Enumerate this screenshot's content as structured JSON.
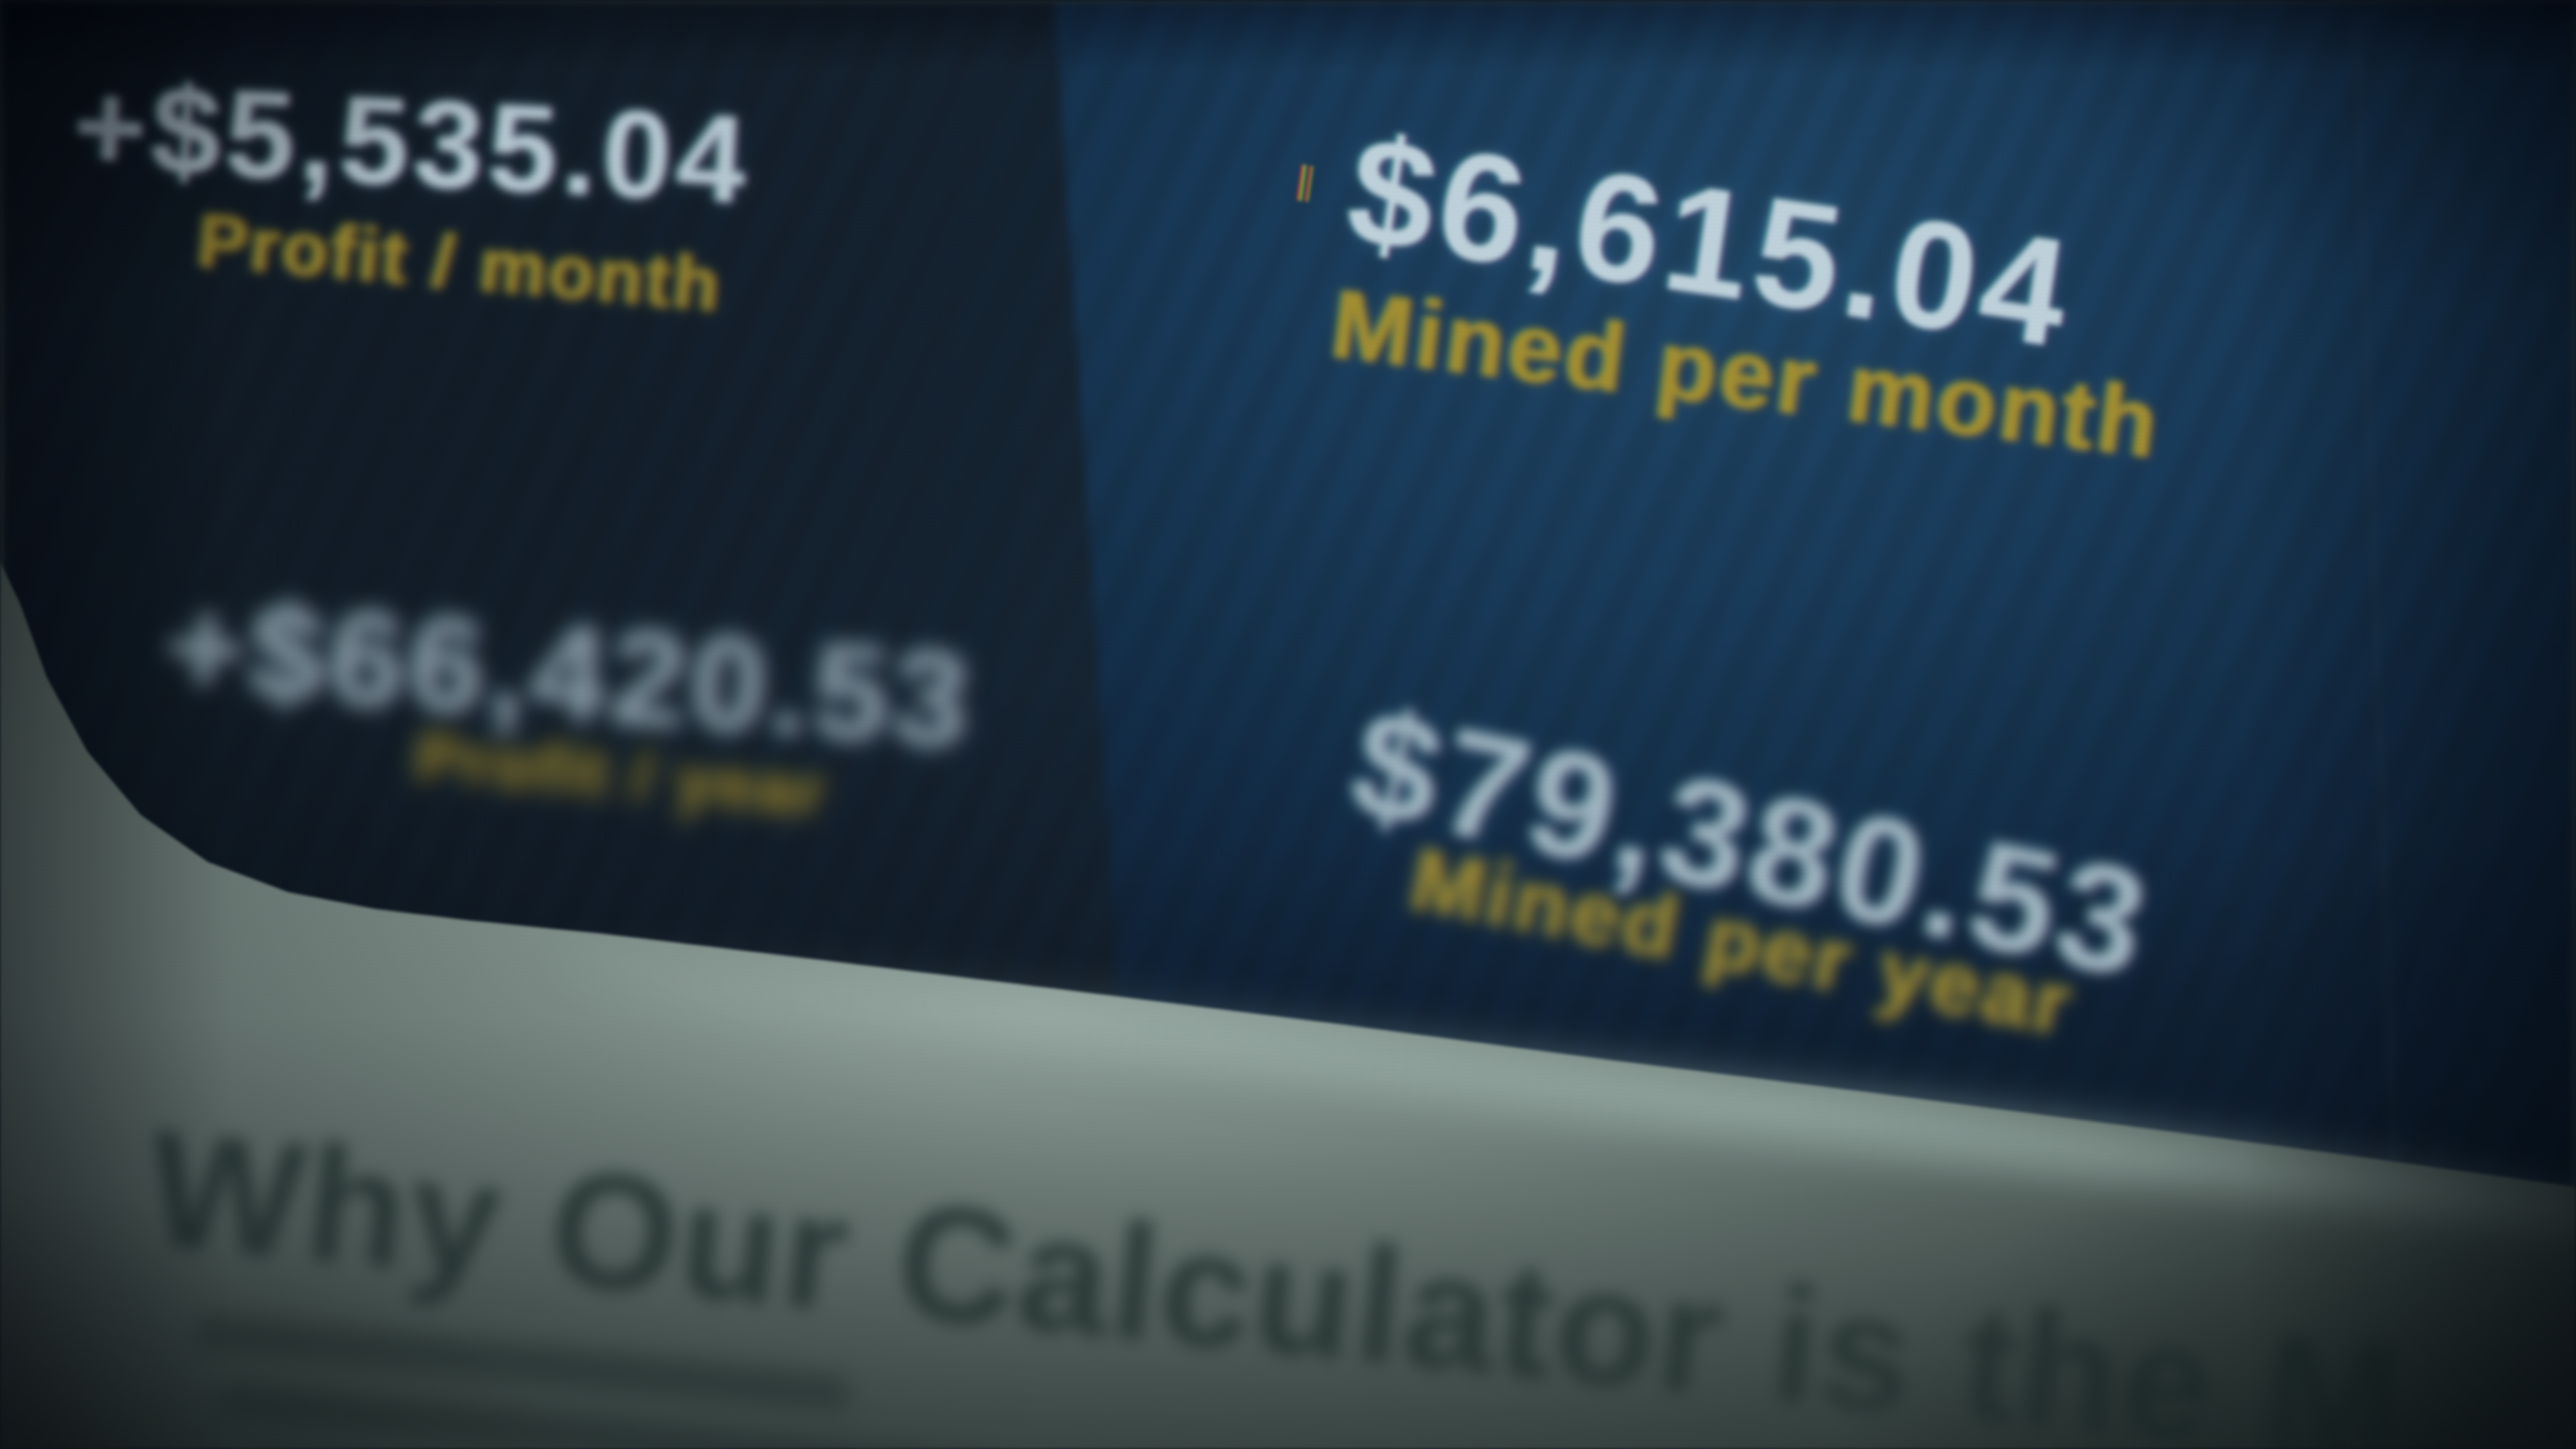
{
  "results_panel": {
    "left": {
      "monthly": {
        "value": "+$5,535.04",
        "label": "Profit / month"
      },
      "yearly": {
        "value": "+$66,420.53",
        "label": "Profit / year"
      }
    },
    "right": {
      "monthly": {
        "value": "$6,615.04",
        "label": "Mined per month"
      },
      "yearly": {
        "value": "$79,380.53",
        "label": "Mined per year"
      }
    }
  },
  "content_section": {
    "heading_visible": "Why Our Calculator is the M"
  },
  "colors": {
    "accent_yellow": "#ac9428",
    "value_text": "#c8dde7",
    "panel_left_background": "#0e1b27",
    "panel_right_background": "#15395a",
    "page_section_background": "#75867f",
    "heading_text": "#2c3e39"
  }
}
